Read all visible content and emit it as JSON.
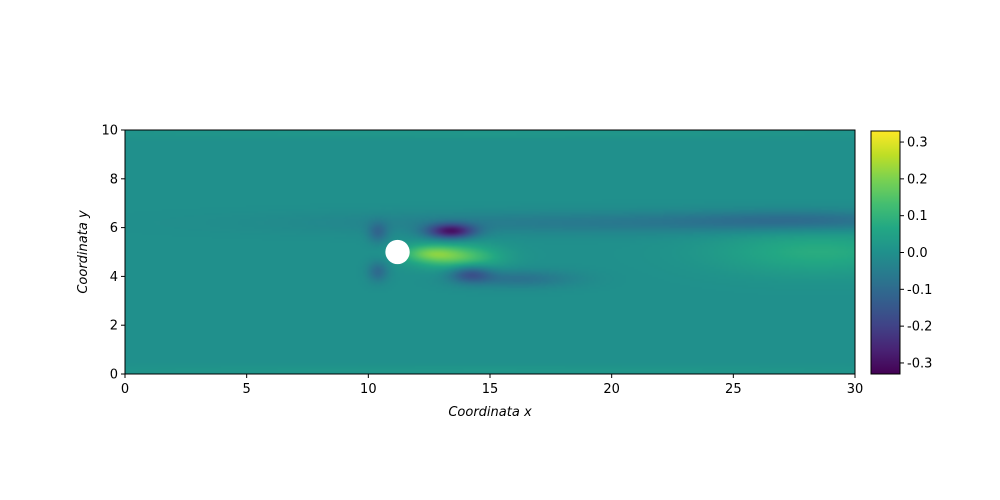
{
  "chart_data": {
    "type": "heatmap",
    "xlabel": "Coordinata x",
    "ylabel": "Coordinata y",
    "xlim": [
      0,
      30
    ],
    "ylim": [
      0,
      10
    ],
    "xticks": [
      0,
      5,
      10,
      15,
      20,
      25,
      30
    ],
    "yticks": [
      0,
      2,
      4,
      6,
      8,
      10
    ],
    "colormap": "viridis",
    "colorbar": {
      "range": [
        -0.33,
        0.33
      ],
      "ticks": [
        0.3,
        0.2,
        0.1,
        0.0,
        -0.1,
        -0.2,
        -0.3
      ],
      "tick_labels": [
        "0.3",
        "0.2",
        "0.1",
        "0.0",
        "-0.1",
        "-0.2",
        "-0.3"
      ]
    },
    "background_value": 0.0,
    "obstacle": {
      "shape": "circle",
      "center_x": 11.2,
      "center_y": 5.0,
      "radius": 0.5,
      "fill": "#ffffff"
    },
    "features": [
      {
        "kind": "negative-shear-layer",
        "x": 13.4,
        "y": 5.85,
        "sx": 0.7,
        "sy": 0.22,
        "value": -0.28
      },
      {
        "kind": "positive-wake-core",
        "x": 13.7,
        "y": 4.8,
        "sx": 1.2,
        "sy": 0.35,
        "value": 0.15
      },
      {
        "kind": "positive-wake-core",
        "x": 12.5,
        "y": 4.95,
        "sx": 0.8,
        "sy": 0.25,
        "value": 0.12
      },
      {
        "kind": "negative-lower-lobe",
        "x": 14.2,
        "y": 4.1,
        "sx": 0.6,
        "sy": 0.25,
        "value": -0.15
      },
      {
        "kind": "negative-lower-band",
        "x": 16.2,
        "y": 3.9,
        "sx": 1.6,
        "sy": 0.25,
        "value": -0.08
      },
      {
        "kind": "negative-upper-band",
        "x": 20.0,
        "y": 6.2,
        "sx": 8.0,
        "sy": 0.32,
        "value": -0.06
      },
      {
        "kind": "negative-upper-band",
        "x": 28.0,
        "y": 6.3,
        "sx": 3.5,
        "sy": 0.3,
        "value": -0.07
      },
      {
        "kind": "positive-outflow-band",
        "x": 28.5,
        "y": 5.0,
        "sx": 3.0,
        "sy": 0.65,
        "value": 0.08
      },
      {
        "kind": "negative-upstream-edge",
        "x": 10.4,
        "y": 5.8,
        "sx": 0.3,
        "sy": 0.3,
        "value": -0.1
      },
      {
        "kind": "negative-upstream-edge",
        "x": 10.4,
        "y": 4.2,
        "sx": 0.3,
        "sy": 0.3,
        "value": -0.1
      },
      {
        "kind": "positive-top-edge",
        "x": 15.0,
        "y": 9.85,
        "sx": 15.0,
        "sy": 0.15,
        "value": 0.02
      },
      {
        "kind": "positive-bottom-edge",
        "x": 15.0,
        "y": 0.15,
        "sx": 15.0,
        "sy": 0.15,
        "value": 0.02
      }
    ]
  }
}
